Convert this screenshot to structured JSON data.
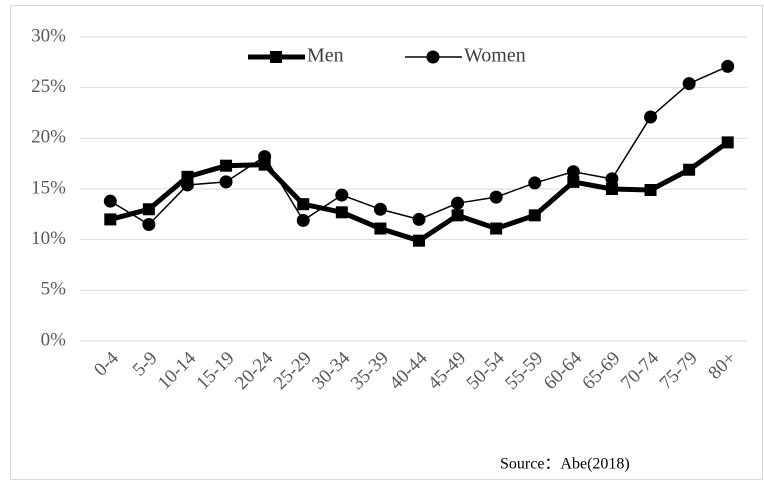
{
  "chart_data": {
    "type": "line",
    "categories": [
      "0-4",
      "5-9",
      "10-14",
      "15-19",
      "20-24",
      "25-29",
      "30-34",
      "35-39",
      "40-44",
      "45-49",
      "50-54",
      "55-59",
      "60-64",
      "65-69",
      "70-74",
      "75-79",
      "80+"
    ],
    "series": [
      {
        "name": "Men",
        "color": "#000000",
        "marker": "square",
        "line_width": 5,
        "values": [
          12.0,
          13.0,
          16.2,
          17.3,
          17.4,
          13.5,
          12.7,
          11.1,
          9.9,
          12.4,
          11.1,
          12.4,
          15.7,
          15.0,
          14.9,
          16.9,
          19.6
        ]
      },
      {
        "name": "Women",
        "color": "#000000",
        "marker": "circle",
        "line_width": 1.5,
        "values": [
          13.8,
          11.5,
          15.4,
          15.7,
          18.2,
          11.9,
          14.4,
          13.0,
          12.0,
          13.6,
          14.2,
          15.6,
          16.7,
          16.0,
          22.1,
          25.4,
          27.1
        ]
      }
    ],
    "ylim": [
      0,
      30
    ],
    "yticks": [
      {
        "value": 0,
        "label": "0%"
      },
      {
        "value": 5,
        "label": "5%"
      },
      {
        "value": 10,
        "label": "10%"
      },
      {
        "value": 15,
        "label": "15%"
      },
      {
        "value": 20,
        "label": "20%"
      },
      {
        "value": 25,
        "label": "25%"
      },
      {
        "value": 30,
        "label": "30%"
      }
    ],
    "grid": true,
    "legend": "top",
    "source": "Source：Abe(2018)"
  }
}
